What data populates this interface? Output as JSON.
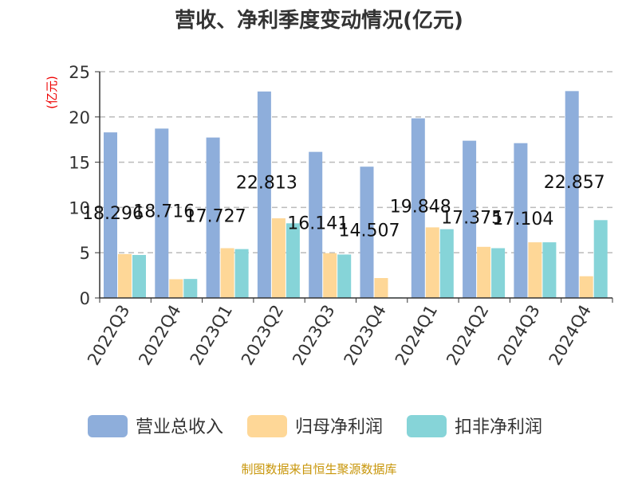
{
  "chart_data": {
    "type": "bar",
    "title": "营收、净利季度变动情况(亿元)",
    "ylabel": "(亿元)",
    "xlabel": "",
    "ylim": [
      0,
      25
    ],
    "yticks": [
      0,
      5,
      10,
      15,
      20,
      25
    ],
    "grid": true,
    "legend_position": "bottom",
    "categories": [
      "2022Q3",
      "2022Q4",
      "2023Q1",
      "2023Q2",
      "2023Q3",
      "2023Q4",
      "2024Q1",
      "2024Q2",
      "2024Q3",
      "2024Q4"
    ],
    "series": [
      {
        "name": "营业总收入",
        "color": "#8eaedb",
        "values": [
          18.296,
          18.716,
          17.727,
          22.813,
          16.141,
          14.507,
          19.848,
          17.375,
          17.104,
          22.857
        ],
        "labels": [
          "18.296",
          "18.716",
          "17.727",
          "22.813",
          "16.141",
          "14.507",
          "19.848",
          "17.375",
          "17.104",
          "22.857"
        ]
      },
      {
        "name": "归母净利润",
        "color": "#fed797",
        "values": [
          4.85,
          2.07,
          5.5,
          8.8,
          4.95,
          2.2,
          7.8,
          5.65,
          6.15,
          2.4
        ]
      },
      {
        "name": "扣非净利润",
        "color": "#86d4d8",
        "values": [
          4.75,
          2.1,
          5.4,
          8.25,
          4.8,
          0.06,
          7.6,
          5.5,
          6.15,
          8.6
        ]
      }
    ]
  },
  "footer": "制图数据来自恒生聚源数据库"
}
